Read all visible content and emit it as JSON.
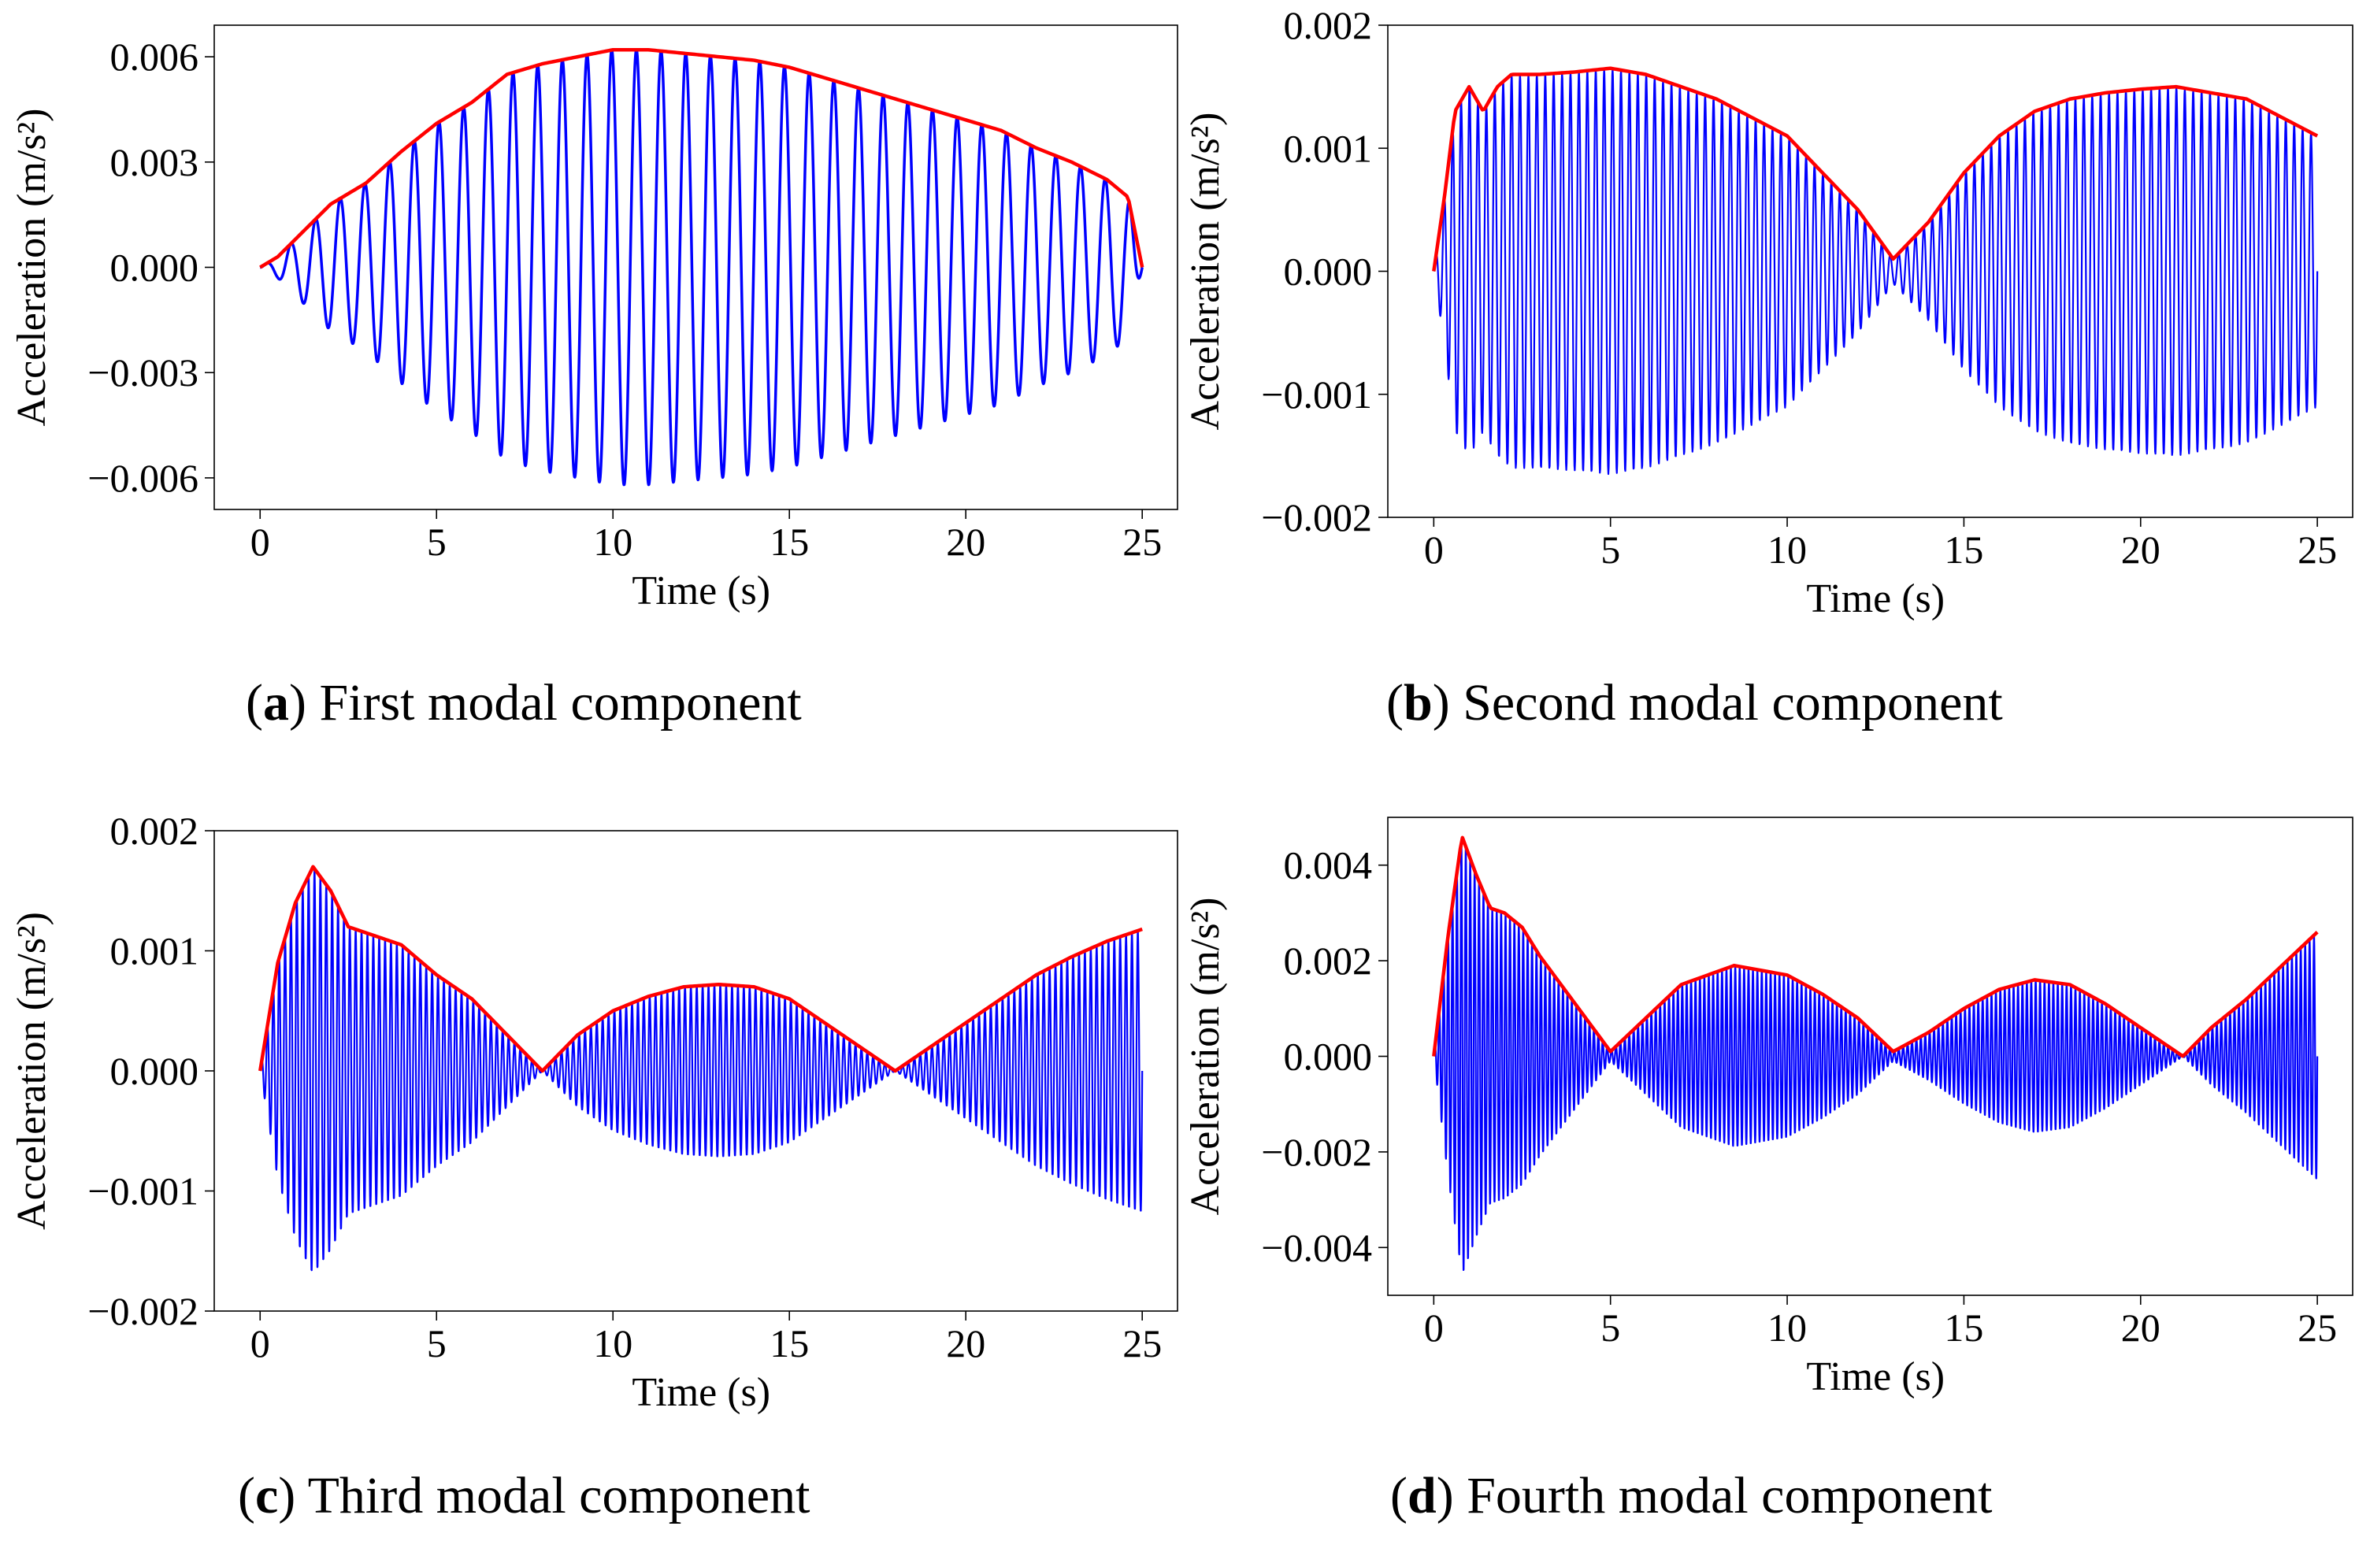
{
  "figure_panels": [
    {
      "id": "a",
      "letter": "a",
      "title": "First modal component"
    },
    {
      "id": "b",
      "letter": "b",
      "title": "Second modal component"
    },
    {
      "id": "c",
      "letter": "c",
      "title": "Third modal component"
    },
    {
      "id": "d",
      "letter": "d",
      "title": "Fourth modal component"
    }
  ],
  "colors": {
    "signal": "#0000ff",
    "envelope": "#ff0000",
    "axes": "#000000"
  },
  "chart_data": [
    {
      "id": "a",
      "type": "line",
      "xlabel": "Time (s)",
      "ylabel": "Acceleration (m/s²)",
      "xlim": [
        -1.3,
        26.0
      ],
      "ylim": [
        -0.0069,
        0.0069
      ],
      "xticks": [
        0,
        5,
        10,
        15,
        20,
        25
      ],
      "xtick_labels": [
        "0",
        "5",
        "10",
        "15",
        "20",
        "25"
      ],
      "yticks": [
        -0.006,
        -0.003,
        0.0,
        0.003,
        0.006
      ],
      "ytick_labels": [
        "−0.006",
        "−0.003",
        "0.000",
        "0.003",
        "0.006"
      ],
      "series": [
        {
          "name": "modal component",
          "color": "#0000ff",
          "frequency_hz": 1.43,
          "duration_s": 25,
          "envelope_ref": "envelope"
        },
        {
          "name": "envelope",
          "color": "#ff0000",
          "x": [
            0,
            0.5,
            1,
            2,
            3,
            4,
            5,
            6,
            7,
            8,
            9,
            10,
            11,
            12,
            13,
            14,
            15,
            16,
            17,
            18,
            19,
            20,
            21,
            22,
            23,
            24,
            24.6,
            25
          ],
          "y": [
            0.0,
            0.0003,
            0.0008,
            0.0018,
            0.0024,
            0.0033,
            0.0041,
            0.0047,
            0.0055,
            0.0058,
            0.006,
            0.0062,
            0.0062,
            0.0061,
            0.006,
            0.0059,
            0.0057,
            0.0054,
            0.0051,
            0.0048,
            0.0045,
            0.0042,
            0.0039,
            0.0034,
            0.003,
            0.0025,
            0.002,
            0.0
          ]
        }
      ]
    },
    {
      "id": "b",
      "type": "line",
      "xlabel": "Time (s)",
      "ylabel": "Acceleration (m/s²)",
      "xlim": [
        -1.3,
        26.0
      ],
      "ylim": [
        -0.002,
        0.002
      ],
      "xticks": [
        0,
        5,
        10,
        15,
        20,
        25
      ],
      "xtick_labels": [
        "0",
        "5",
        "10",
        "15",
        "20",
        "25"
      ],
      "yticks": [
        -0.002,
        -0.001,
        0.0,
        0.001,
        0.002
      ],
      "ytick_labels": [
        "−0.002",
        "−0.001",
        "0.000",
        "0.001",
        "0.002"
      ],
      "series": [
        {
          "name": "modal component",
          "color": "#0000ff",
          "frequency_hz": 4.2,
          "duration_s": 25,
          "envelope_ref": "envelope"
        },
        {
          "name": "envelope",
          "color": "#ff0000",
          "x": [
            0,
            0.3,
            0.6,
            1.0,
            1.4,
            1.8,
            2.2,
            3,
            4,
            5,
            6,
            7,
            8,
            9,
            10,
            11,
            12,
            13,
            14,
            15,
            16,
            17,
            18,
            19,
            20,
            21,
            22,
            23,
            24,
            25
          ],
          "y": [
            0.0,
            0.0006,
            0.0013,
            0.0015,
            0.0013,
            0.0015,
            0.0016,
            0.0016,
            0.00162,
            0.00165,
            0.0016,
            0.0015,
            0.0014,
            0.00125,
            0.0011,
            0.0008,
            0.0005,
            0.0001,
            0.0004,
            0.0008,
            0.0011,
            0.0013,
            0.0014,
            0.00145,
            0.00148,
            0.0015,
            0.00145,
            0.0014,
            0.00125,
            0.0011
          ]
        }
      ]
    },
    {
      "id": "c",
      "type": "line",
      "xlabel": "Time (s)",
      "ylabel": "Acceleration (m/s²)",
      "xlim": [
        -1.3,
        26.0
      ],
      "ylim": [
        -0.002,
        0.002
      ],
      "xticks": [
        0,
        5,
        10,
        15,
        20,
        25
      ],
      "xtick_labels": [
        "0",
        "5",
        "10",
        "15",
        "20",
        "25"
      ],
      "yticks": [
        -0.002,
        -0.001,
        0.0,
        0.001,
        0.002
      ],
      "ytick_labels": [
        "−0.002",
        "−0.001",
        "0.000",
        "0.001",
        "0.002"
      ],
      "series": [
        {
          "name": "modal component",
          "color": "#0000ff",
          "frequency_hz": 6.0,
          "duration_s": 25,
          "envelope_ref": "envelope"
        },
        {
          "name": "envelope",
          "color": "#ff0000",
          "x": [
            0,
            0.5,
            1.0,
            1.5,
            2.0,
            2.5,
            3,
            4,
            5,
            6,
            7,
            8,
            9,
            10,
            11,
            12,
            13,
            14,
            15,
            16,
            17,
            18,
            19,
            20,
            21,
            22,
            23,
            24,
            25
          ],
          "y": [
            0.0,
            0.0009,
            0.0014,
            0.0017,
            0.0015,
            0.0012,
            0.00115,
            0.00105,
            0.0008,
            0.0006,
            0.0003,
            0.0,
            0.0003,
            0.0005,
            0.00062,
            0.0007,
            0.00072,
            0.0007,
            0.0006,
            0.0004,
            0.0002,
            0.0,
            0.0002,
            0.0004,
            0.0006,
            0.0008,
            0.00095,
            0.00108,
            0.00118
          ]
        }
      ]
    },
    {
      "id": "d",
      "type": "line",
      "xlabel": "Time (s)",
      "ylabel": "Acceleration (m/s²)",
      "xlim": [
        -1.3,
        26.0
      ],
      "ylim": [
        -0.005,
        0.005
      ],
      "xticks": [
        0,
        5,
        10,
        15,
        20,
        25
      ],
      "xtick_labels": [
        "0",
        "5",
        "10",
        "15",
        "20",
        "25"
      ],
      "yticks": [
        -0.004,
        -0.002,
        0.0,
        0.002,
        0.004
      ],
      "ytick_labels": [
        "−0.004",
        "−0.002",
        "0.000",
        "0.002",
        "0.004"
      ],
      "series": [
        {
          "name": "modal component",
          "color": "#0000ff",
          "frequency_hz": 8.0,
          "duration_s": 25,
          "envelope_ref": "envelope"
        },
        {
          "name": "envelope",
          "color": "#ff0000",
          "x": [
            0,
            0.4,
            0.8,
            1.2,
            1.6,
            2.0,
            2.5,
            3,
            4,
            5,
            6,
            7,
            8.5,
            10,
            11,
            12,
            13,
            14,
            15,
            16,
            17,
            18,
            19,
            20,
            21.2,
            22,
            23,
            24,
            25
          ],
          "y": [
            0.0,
            0.0025,
            0.0046,
            0.0038,
            0.0031,
            0.003,
            0.0027,
            0.0021,
            0.0011,
            0.0001,
            0.0008,
            0.0015,
            0.0019,
            0.0017,
            0.0013,
            0.0008,
            0.0001,
            0.0005,
            0.001,
            0.0014,
            0.0016,
            0.0015,
            0.0011,
            0.0006,
            0.0,
            0.0006,
            0.0012,
            0.0019,
            0.0026
          ]
        }
      ]
    }
  ]
}
